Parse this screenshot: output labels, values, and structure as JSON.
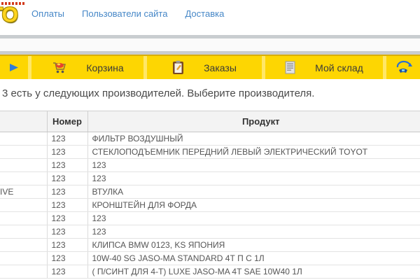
{
  "header": {
    "logo_text": "ТО",
    "nav_links": [
      {
        "label": "Оплаты"
      },
      {
        "label": "Пользователи сайта"
      },
      {
        "label": "Доставка"
      }
    ]
  },
  "toolbar": {
    "cart_label": "Корзина",
    "orders_label": "Заказы",
    "stock_label": "Мой склад",
    "icons": {
      "play": "play-icon",
      "cart": "cart-icon",
      "orders": "clipboard-icon",
      "stock": "stock-list-icon",
      "phone": "phone-callback-icon"
    }
  },
  "main": {
    "headline": "3 есть у следующих производителей. Выберите производителя."
  },
  "table": {
    "headers": {
      "manufacturer": "",
      "number": "Номер",
      "product": "Продукт"
    },
    "rows": [
      {
        "manufacturer": "",
        "number": "123",
        "product": "ФИЛЬТР ВОЗДУШНЫЙ"
      },
      {
        "manufacturer": "",
        "number": "123",
        "product": "СТЕКЛОПОДЪЕМНИК ПЕРЕДНИЙ ЛЕВЫЙ ЭЛЕКТРИЧЕСКИЙ TOYOT"
      },
      {
        "manufacturer": "",
        "number": "123",
        "product": "123"
      },
      {
        "manufacturer": "",
        "number": "123",
        "product": "123"
      },
      {
        "manufacturer": "IVE",
        "number": "123",
        "product": "ВТУЛКА"
      },
      {
        "manufacturer": "",
        "number": "123",
        "product": "КРОНШТЕЙН ДЛЯ ФОРДА"
      },
      {
        "manufacturer": "",
        "number": "123",
        "product": "123"
      },
      {
        "manufacturer": "",
        "number": "123",
        "product": "123"
      },
      {
        "manufacturer": "",
        "number": "123",
        "product": "КЛИПСА BMW 0123, KS ЯПОНИЯ"
      },
      {
        "manufacturer": "",
        "number": "123",
        "product": "10W-40 SG JASO-MA STANDARD 4Т П С 1Л"
      },
      {
        "manufacturer": "",
        "number": "123",
        "product": "( П/СИНТ ДЛЯ 4-Т) LUXE JASO-MA 4T SAE 10W40 1Л"
      }
    ]
  },
  "colors": {
    "toolbar_yellow": "#fdd602",
    "toolbar_divider": "#ffe767",
    "toolbar_top_edge": "#d9ae00",
    "nav_link_blue": "#4687c7",
    "play_blue": "#2f7cd8",
    "headline_gray": "#4a4a4a",
    "table_header_bg": "#f3f3f3",
    "row_border": "#e3e3e3"
  }
}
